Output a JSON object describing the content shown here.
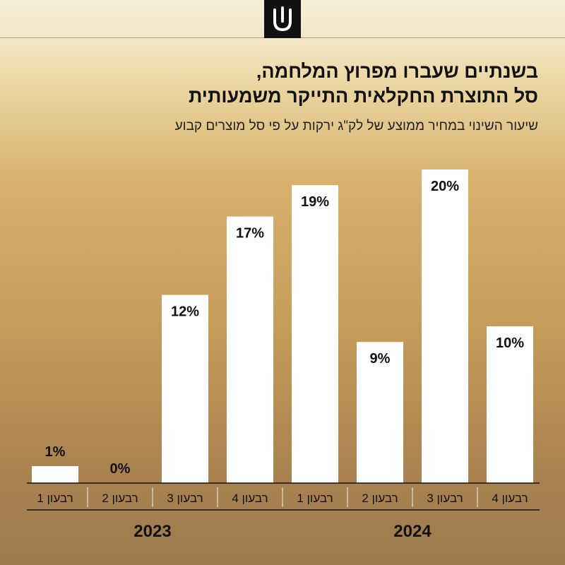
{
  "header": {
    "logo": "shin-logo-icon"
  },
  "title_lines": [
    "בשנתיים שעברו מפרוץ המלחמה,",
    "סל התוצרת החקלאית התייקר משמעותית"
  ],
  "subtitle": "שיעור השינוי במחיר ממוצע של לק\"ג ירקות על פי סל מוצרים קבוע",
  "colors": {
    "bar": "#ffffff",
    "text": "#111111"
  },
  "chart_data": {
    "type": "bar",
    "categories": [
      "רבעון 1",
      "רבעון 2",
      "רבעון 3",
      "רבעון 4",
      "רבעון 1",
      "רבעון 2",
      "רבעון 3",
      "רבעון 4"
    ],
    "values": [
      1,
      0,
      12,
      17,
      19,
      9,
      20,
      10
    ],
    "value_labels": [
      "1%",
      "0%",
      "12%",
      "17%",
      "19%",
      "9%",
      "20%",
      "10%"
    ],
    "groups": [
      {
        "label": "2023",
        "categories": [
          0,
          1,
          2,
          3
        ]
      },
      {
        "label": "2024",
        "categories": [
          4,
          5,
          6,
          7
        ]
      }
    ],
    "ylim": [
      0,
      20
    ],
    "grid": false,
    "legend": "none",
    "title": "בשנתיים שעברו מפרוץ המלחמה, סל התוצרת החקלאית התייקר משמעותית",
    "subtitle": "שיעור השינוי במחיר ממוצע של לק\"ג ירקות על פי סל מוצרים קבוע"
  }
}
